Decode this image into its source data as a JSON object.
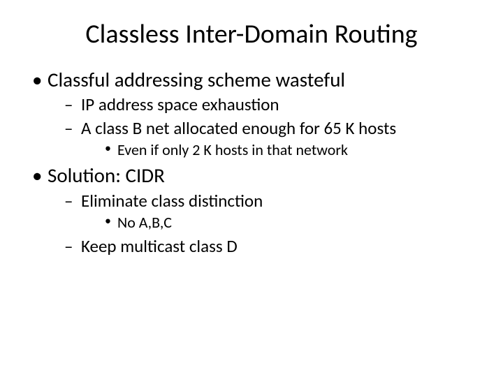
{
  "title": "Classless Inter-Domain Routing",
  "bullets": {
    "b1": "Classful addressing scheme wasteful",
    "b1_1": "IP address space exhaustion",
    "b1_2": "A class B net allocated enough for 65 K hosts",
    "b1_2_1": "Even if only 2 K hosts in that network",
    "b2": "Solution: CIDR",
    "b2_1": "Eliminate class distinction",
    "b2_1_1": "No A,B,C",
    "b2_2": "Keep multicast class D"
  },
  "style": {
    "background_color": "#ffffff",
    "text_color": "#000000",
    "font_family": "Calibri",
    "title_fontsize": 38,
    "l1_fontsize": 29,
    "l2_fontsize": 25,
    "l3_fontsize": 22
  }
}
